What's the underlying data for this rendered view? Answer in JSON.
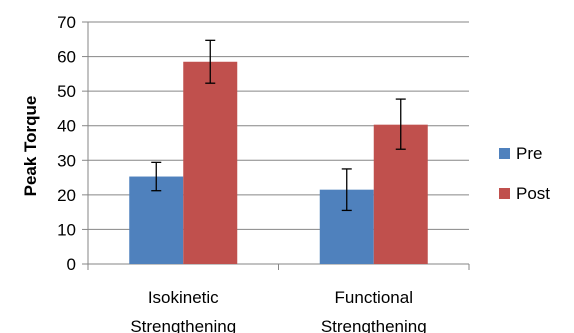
{
  "chart_data": {
    "type": "bar",
    "title": "",
    "xlabel": "",
    "ylabel": "Peak Torque",
    "ylim": [
      0,
      70
    ],
    "yticks": [
      0,
      10,
      20,
      30,
      40,
      50,
      60,
      70
    ],
    "grid": true,
    "legend_position": "right",
    "categories": [
      [
        "Isokinetic",
        "Strengthening"
      ],
      [
        "Functional",
        "Strengthening"
      ]
    ],
    "series": [
      {
        "name": "Pre",
        "color": "#4f81bd",
        "values": [
          25.3,
          21.5
        ],
        "error_low": [
          21.2,
          15.5
        ],
        "error_high": [
          29.4,
          27.5
        ]
      },
      {
        "name": "Post",
        "color": "#c0504d",
        "values": [
          58.5,
          40.3
        ],
        "error_low": [
          52.3,
          33.2
        ],
        "error_high": [
          64.7,
          47.7
        ]
      }
    ]
  }
}
